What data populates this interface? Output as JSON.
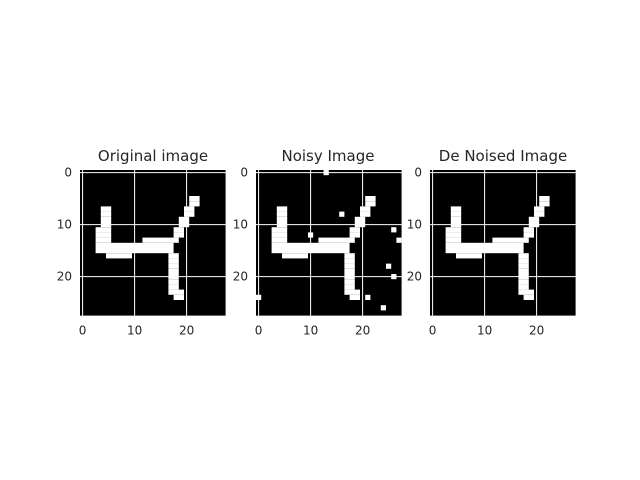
{
  "figure": {
    "background": "#ffffff"
  },
  "chart_data": [
    {
      "type": "heatmap",
      "title": "Original image",
      "xticks": [
        0,
        10,
        20
      ],
      "yticks": [
        0,
        10,
        20
      ],
      "grid": true,
      "grid_color": "#ffffff",
      "colormap": {
        "0": "#000000",
        "1": "#ffffff"
      },
      "shape": [
        28,
        28
      ],
      "on_runs": [
        [
          5,
          21,
          22
        ],
        [
          6,
          21,
          22
        ],
        [
          7,
          4,
          5
        ],
        [
          7,
          20,
          21
        ],
        [
          8,
          4,
          5
        ],
        [
          8,
          20,
          21
        ],
        [
          9,
          4,
          5
        ],
        [
          9,
          19,
          20
        ],
        [
          10,
          4,
          5
        ],
        [
          10,
          19,
          20
        ],
        [
          11,
          3,
          5
        ],
        [
          11,
          18,
          19
        ],
        [
          12,
          3,
          5
        ],
        [
          12,
          18,
          19
        ],
        [
          13,
          3,
          5
        ],
        [
          13,
          12,
          18
        ],
        [
          14,
          3,
          17
        ],
        [
          15,
          3,
          17
        ],
        [
          16,
          5,
          9
        ],
        [
          16,
          17,
          18
        ],
        [
          17,
          17,
          18
        ],
        [
          18,
          17,
          18
        ],
        [
          19,
          17,
          18
        ],
        [
          20,
          17,
          18
        ],
        [
          21,
          17,
          18
        ],
        [
          22,
          17,
          18
        ],
        [
          23,
          17,
          19
        ],
        [
          24,
          18,
          19
        ]
      ]
    },
    {
      "type": "heatmap",
      "title": "Noisy Image",
      "xticks": [
        0,
        10,
        20
      ],
      "yticks": [
        0,
        10,
        20
      ],
      "grid": true,
      "grid_color": "#ffffff",
      "colormap": {
        "0": "#000000",
        "1": "#ffffff"
      },
      "shape": [
        28,
        28
      ],
      "on_runs": [
        [
          0,
          13,
          13
        ],
        [
          5,
          21,
          22
        ],
        [
          6,
          21,
          22
        ],
        [
          7,
          4,
          5
        ],
        [
          7,
          20,
          21
        ],
        [
          8,
          4,
          5
        ],
        [
          8,
          16,
          16
        ],
        [
          8,
          20,
          21
        ],
        [
          9,
          4,
          5
        ],
        [
          9,
          19,
          20
        ],
        [
          10,
          4,
          5
        ],
        [
          10,
          19,
          20
        ],
        [
          11,
          3,
          5
        ],
        [
          11,
          18,
          19
        ],
        [
          11,
          26,
          26
        ],
        [
          12,
          3,
          5
        ],
        [
          12,
          10,
          10
        ],
        [
          12,
          18,
          19
        ],
        [
          13,
          3,
          5
        ],
        [
          13,
          12,
          18
        ],
        [
          13,
          27,
          27
        ],
        [
          14,
          3,
          17
        ],
        [
          15,
          3,
          17
        ],
        [
          16,
          5,
          9
        ],
        [
          16,
          17,
          18
        ],
        [
          17,
          17,
          18
        ],
        [
          18,
          17,
          18
        ],
        [
          18,
          25,
          25
        ],
        [
          19,
          17,
          18
        ],
        [
          20,
          17,
          18
        ],
        [
          20,
          26,
          26
        ],
        [
          21,
          17,
          18
        ],
        [
          22,
          17,
          18
        ],
        [
          23,
          17,
          19
        ],
        [
          24,
          0,
          0
        ],
        [
          24,
          18,
          19
        ],
        [
          24,
          21,
          21
        ],
        [
          26,
          24,
          24
        ]
      ]
    },
    {
      "type": "heatmap",
      "title": "De Noised Image",
      "xticks": [
        0,
        10,
        20
      ],
      "yticks": [
        0,
        10,
        20
      ],
      "grid": true,
      "grid_color": "#ffffff",
      "colormap": {
        "0": "#000000",
        "1": "#ffffff"
      },
      "shape": [
        28,
        28
      ],
      "on_runs": [
        [
          5,
          21,
          22
        ],
        [
          6,
          21,
          22
        ],
        [
          7,
          4,
          5
        ],
        [
          7,
          20,
          21
        ],
        [
          8,
          4,
          5
        ],
        [
          8,
          20,
          21
        ],
        [
          9,
          4,
          5
        ],
        [
          9,
          19,
          20
        ],
        [
          10,
          4,
          5
        ],
        [
          10,
          19,
          20
        ],
        [
          11,
          3,
          5
        ],
        [
          11,
          18,
          19
        ],
        [
          12,
          3,
          5
        ],
        [
          12,
          18,
          19
        ],
        [
          13,
          3,
          5
        ],
        [
          13,
          12,
          18
        ],
        [
          14,
          3,
          17
        ],
        [
          15,
          3,
          17
        ],
        [
          16,
          5,
          9
        ],
        [
          16,
          17,
          18
        ],
        [
          17,
          17,
          18
        ],
        [
          18,
          17,
          18
        ],
        [
          19,
          17,
          18
        ],
        [
          20,
          17,
          18
        ],
        [
          21,
          17,
          18
        ],
        [
          22,
          17,
          18
        ],
        [
          23,
          17,
          19
        ],
        [
          24,
          18,
          19
        ]
      ]
    }
  ]
}
